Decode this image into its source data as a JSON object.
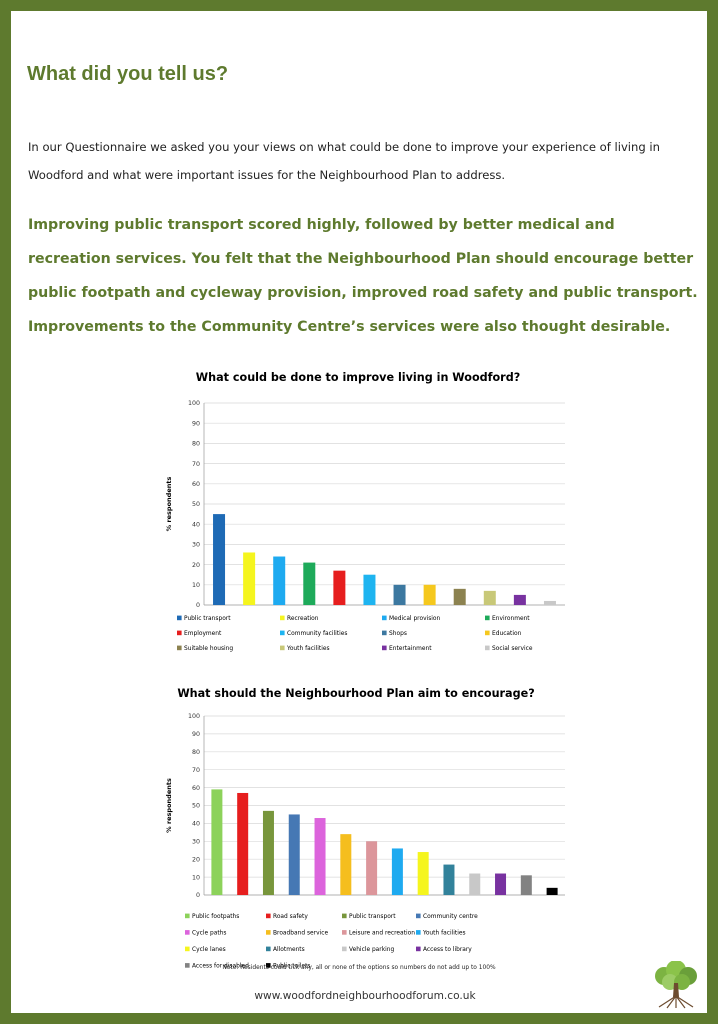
{
  "heading": "What did you tell us?",
  "intro": "In our Questionnaire we asked you your views on what could be done to improve your experience of living in Woodford and what were important issues for the Neighbourhood Plan to address.",
  "summary": "Improving public transport scored highly, followed by better medical and recreation services.  You felt that the Neighbourhood Plan should encourage better public footpath and cycleway provision, improved road safety and public transport.  Improvements to the Community Centre’s services were also thought desirable.",
  "note": "Note: Residents could tick any, all or none of the options so numbers do not add up to 100%",
  "url": "www.woodfordneighbourhoodforum.co.uk",
  "logo_icon": "tree-icon",
  "colors": {
    "brand_green": "#5e7a2e"
  },
  "chart_data": [
    {
      "type": "bar",
      "title": "What could be done to improve living in Woodford?",
      "xlabel": "",
      "ylabel": "% respondents",
      "ylim": [
        0,
        100
      ],
      "yticks": [
        "0",
        "10",
        "20",
        "30",
        "40",
        "50",
        "60",
        "70",
        "80",
        "90",
        "100"
      ],
      "grid": true,
      "legend_position": "bottom",
      "categories": [
        "Public transport",
        "Recreation",
        "Medical provision",
        "Environment",
        "Employment",
        "Community facilities",
        "Shops",
        "Education",
        "Suitable housing",
        "Youth facilities",
        "Entertainment",
        "Social service"
      ],
      "values": [
        45,
        26,
        24,
        21,
        17,
        15,
        10,
        10,
        8,
        7,
        5,
        2
      ],
      "colors": [
        "#1e6ab5",
        "#f5f51e",
        "#1eaaf0",
        "#1eaa5a",
        "#e61e1e",
        "#1eb4f0",
        "#3c78a0",
        "#f5c81e",
        "#8c8250",
        "#c8c878",
        "#7832a0",
        "#c8c8c8"
      ]
    },
    {
      "type": "bar",
      "title": "What should the Neighbourhood Plan aim to encourage?",
      "xlabel": "",
      "ylabel": "% respondents",
      "ylim": [
        0,
        100
      ],
      "yticks": [
        "0",
        "10",
        "20",
        "30",
        "40",
        "50",
        "60",
        "70",
        "80",
        "90",
        "100"
      ],
      "grid": true,
      "legend_position": "bottom",
      "categories": [
        "Public footpaths",
        "Road safety",
        "Public transport",
        "Community centre",
        "Cycle paths",
        "Broadband service",
        "Leisure and recreation",
        "Youth facilities",
        "Cycle lanes",
        "Allotments",
        "Vehicle parking",
        "Access to library",
        "Access for disabled",
        "Public toilets"
      ],
      "values": [
        59,
        57,
        47,
        45,
        43,
        34,
        30,
        26,
        24,
        17,
        12,
        12,
        11,
        4
      ],
      "colors": [
        "#8cd25a",
        "#e61e1e",
        "#78963c",
        "#4678b4",
        "#dc64dc",
        "#f5be1e",
        "#dc969b",
        "#1eaaf0",
        "#f5f51e",
        "#32829b",
        "#c8c8c8",
        "#7832a0",
        "#828282",
        "#000000"
      ]
    }
  ]
}
